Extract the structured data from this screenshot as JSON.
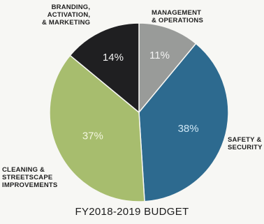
{
  "chart_data": {
    "type": "pie",
    "title": "FY2018-2019 BUDGET",
    "slices": [
      {
        "label_lines": [
          "MANAGEMENT",
          "& OPERATIONS"
        ],
        "value": 11,
        "value_label": "11%",
        "color": "#999b99",
        "text_color": "#f2f2f2"
      },
      {
        "label_lines": [
          "SAFETY &",
          "SECURITY"
        ],
        "value": 38,
        "value_label": "38%",
        "color": "#2d6a8f",
        "text_color": "#cfe7f5"
      },
      {
        "label_lines": [
          "CLEANING &",
          "STREETSCAPE",
          "IMPROVEMENTS"
        ],
        "value": 37,
        "value_label": "37%",
        "color": "#a7bd6e",
        "text_color": "#f3f6df"
      },
      {
        "label_lines": [
          "BRANDING,",
          "ACTIVATION,",
          "& MARKETING"
        ],
        "value": 14,
        "value_label": "14%",
        "color": "#1f1f21",
        "text_color": "#f0f0f0"
      }
    ],
    "start_angle": "12 o'clock",
    "direction": "clockwise"
  }
}
